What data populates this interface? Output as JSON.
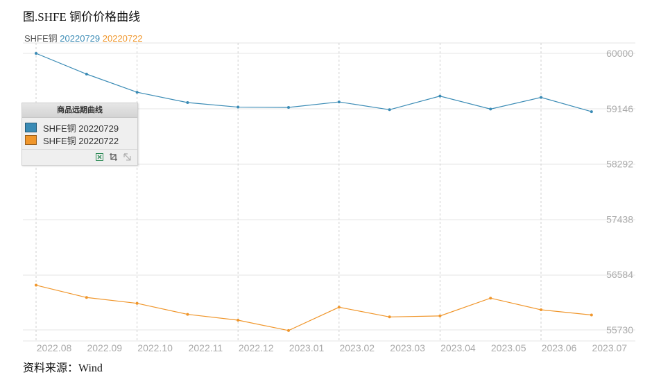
{
  "figure": {
    "title": "图.SHFE 铜价价格曲线",
    "source": "资料来源：Wind"
  },
  "legend_top": {
    "prefix": "SHFE铜",
    "items": [
      "20220729",
      "20220722"
    ]
  },
  "legend_box": {
    "title": "商品远期曲线",
    "items": [
      "SHFE铜 20220729",
      "SHFE铜 20220722"
    ],
    "tools": [
      "export-excel-icon",
      "crop-icon",
      "collapse-icon"
    ]
  },
  "colors": {
    "series_1": "#3a8bb5",
    "series_2": "#f0962b",
    "prefix_text": "#555555",
    "axis_text": "#aaaaaa",
    "grid": "#e6e6e6",
    "excel_icon": "#2e8b57"
  },
  "chart_data": {
    "type": "line",
    "title": "",
    "xlabel": "",
    "ylabel": "",
    "x_ticks": [
      "2022.08",
      "2022.09",
      "2022.10",
      "2022.11",
      "2022.12",
      "2023.01",
      "2023.02",
      "2023.03",
      "2023.04",
      "2023.05",
      "2023.06",
      "2023.07"
    ],
    "y_ticks": [
      60000,
      59146,
      58292,
      57438,
      56584,
      55730
    ],
    "ylim": [
      55730,
      60000
    ],
    "y_axis_side": "right",
    "grid": true,
    "legend_placement": "top-left",
    "series": [
      {
        "name": "20220729",
        "values": [
          60000,
          59680,
          59400,
          59240,
          59170,
          59165,
          59250,
          59130,
          59340,
          59140,
          59320,
          59100
        ]
      },
      {
        "name": "20220722",
        "values": [
          56420,
          56230,
          56140,
          55970,
          55880,
          55720,
          56080,
          55930,
          55945,
          56220,
          56040,
          55960
        ]
      }
    ]
  }
}
